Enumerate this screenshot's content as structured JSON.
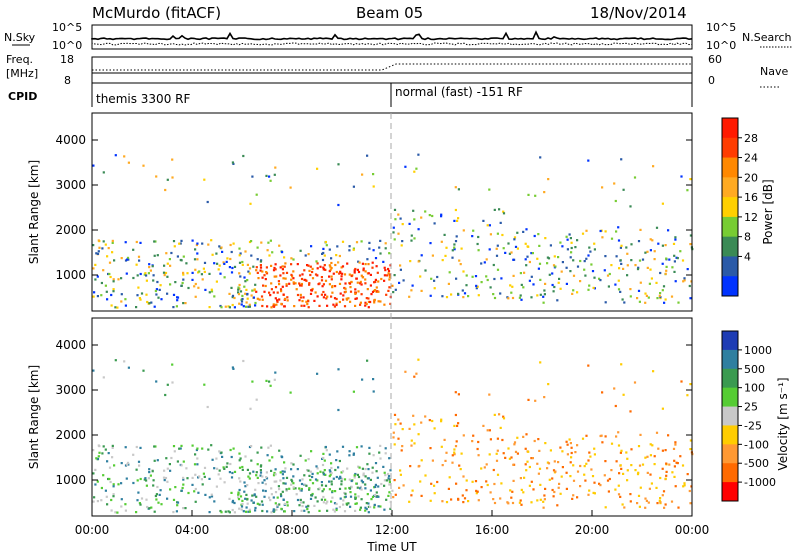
{
  "header": {
    "station": "McMurdo (fitACF)",
    "beam": "Beam 05",
    "date": "18/Nov/2014"
  },
  "params_panel": {
    "nsky_label": "N.Sky",
    "nsearch_label": "N.Search",
    "freq_label_1": "Freq.",
    "freq_label_2": "[MHz]",
    "nave_label": "Nave",
    "cpid_label": "CPID",
    "left_ticks_top": [
      "10^5",
      "10^0"
    ],
    "right_ticks_top": [
      "10^5",
      "10^0"
    ],
    "left_ticks_freq": [
      "18",
      "8"
    ],
    "right_ticks_nave": [
      "60",
      "0"
    ],
    "cpid_segments": [
      {
        "label": "themis 3300 RF",
        "start_hour": 0
      },
      {
        "label": "normal (fast) -151 RF",
        "start_hour": 12
      }
    ]
  },
  "power_colorbar": {
    "label": "Power [dB]",
    "ticks": [
      "28",
      "24",
      "20",
      "16",
      "12",
      "8",
      "4"
    ],
    "colors": [
      "#ff1a00",
      "#ff3c00",
      "#ff8800",
      "#ffaa22",
      "#ffd000",
      "#77cc33",
      "#3a8a55",
      "#2a5aa8",
      "#0033ff"
    ]
  },
  "velocity_colorbar": {
    "label": "Velocity [m s⁻¹]",
    "ticks": [
      "1000",
      "500",
      "100",
      "25",
      "-25",
      "-100",
      "-500",
      "-1000"
    ],
    "colors": [
      "#1e3cb4",
      "#2f7fa0",
      "#3a9a50",
      "#55cc33",
      "#c8c8c8",
      "#ffcc00",
      "#ff9933",
      "#ff6a00",
      "#ff0000"
    ]
  },
  "chart_data": {
    "type": "heatmap",
    "xlabel": "Time UT",
    "x_ticks": [
      "00:00",
      "04:00",
      "08:00",
      "12:00",
      "16:00",
      "20:00",
      "00:00"
    ],
    "x_range_hours": [
      0,
      24
    ],
    "panels": [
      {
        "name": "power",
        "ylabel": "Slant Range [km]",
        "ylim": [
          200,
          4600
        ],
        "y_ticks": [
          1000,
          2000,
          3000,
          4000
        ]
      },
      {
        "name": "velocity",
        "ylabel": "Slant Range [km]",
        "ylim": [
          200,
          4600
        ],
        "y_ticks": [
          1000,
          2000,
          3000,
          4000
        ]
      }
    ]
  }
}
